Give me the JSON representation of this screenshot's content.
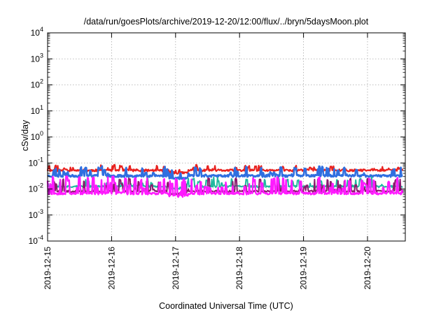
{
  "chart_data": {
    "type": "line",
    "title": "/data/run/goesPlots/archive/2019-12-20/12:00/flux/../bryn/5daysMoon.plot",
    "xlabel": "Coordinated Universal Time (UTC)",
    "ylabel": "cSv/day",
    "yscale": "log",
    "ylim": [
      0.0001,
      10000
    ],
    "xlim_days": [
      0,
      5.55
    ],
    "grid": true,
    "y_ticks": [
      {
        "value": 0.0001,
        "base": "10",
        "exp": "-4"
      },
      {
        "value": 0.001,
        "base": "10",
        "exp": "-3"
      },
      {
        "value": 0.01,
        "base": "10",
        "exp": "-2"
      },
      {
        "value": 0.1,
        "base": "10",
        "exp": "-1"
      },
      {
        "value": 1,
        "base": "10",
        "exp": "0"
      },
      {
        "value": 10,
        "base": "10",
        "exp": "1"
      },
      {
        "value": 100,
        "base": "10",
        "exp": "2"
      },
      {
        "value": 1000,
        "base": "10",
        "exp": "3"
      },
      {
        "value": 10000,
        "base": "10",
        "exp": "4"
      }
    ],
    "x_ticks": [
      {
        "day": 0,
        "label": "2019-12-15"
      },
      {
        "day": 1,
        "label": "2019-12-16"
      },
      {
        "day": 2,
        "label": "2019-12-17"
      },
      {
        "day": 3,
        "label": "2019-12-18"
      },
      {
        "day": 4,
        "label": "2019-12-19"
      },
      {
        "day": 5,
        "label": "2019-12-20"
      }
    ],
    "series": [
      {
        "color": "#e8221f",
        "base": 0.052,
        "spike": 1.5,
        "spikeProb": 0.08,
        "dip": 1.0,
        "dipProb": 0.0,
        "noise": 0.1,
        "width": 2.2,
        "seed": 11
      },
      {
        "color": "#2f6fe0",
        "base": 0.032,
        "spike": 2.2,
        "spikeProb": 0.1,
        "dip": 1.0,
        "dipProb": 0.0,
        "noise": 0.1,
        "width": 2.6,
        "seed": 23
      },
      {
        "color": "#22b8a0",
        "base": 0.0125,
        "spike": 2.2,
        "spikeProb": 0.1,
        "dip": 1.0,
        "dipProb": 0.0,
        "noise": 0.08,
        "width": 2.0,
        "seed": 37
      },
      {
        "color": "#8a1a6e",
        "base": 0.0082,
        "spike": 3.0,
        "spikeProb": 0.12,
        "dip": 1.0,
        "dipProb": 0.0,
        "noise": 0.08,
        "width": 2.0,
        "seed": 41
      },
      {
        "color": "#ff1aff",
        "base": 0.0068,
        "spike": 4.5,
        "spikeProb": 0.18,
        "dip": 1.0,
        "dipProb": 0.0,
        "noise": 0.1,
        "width": 2.4,
        "seed": 53
      }
    ]
  }
}
